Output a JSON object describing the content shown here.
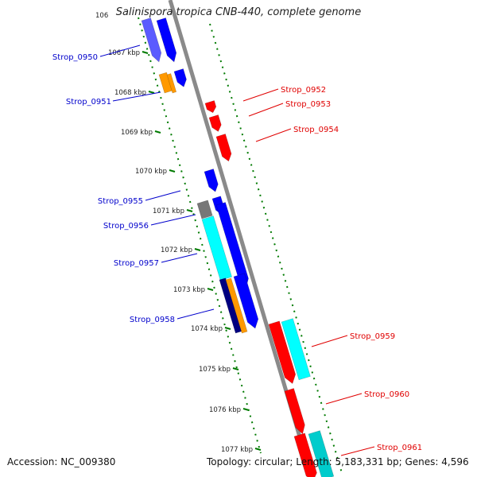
{
  "header": {
    "title": "Salinispora tropica CNB-440, complete genome",
    "top_cut_label": "106"
  },
  "footer": {
    "accession": "Accession: NC_009380",
    "summary": "Topology: circular; Length: 5,183,331 bp; Genes: 4,596"
  },
  "colors": {
    "backbone": "#8a8a8a",
    "tick": "#007a00",
    "forward_label": "#0000cc",
    "reverse_label": "#e00000",
    "cds_forward": "#0000ff",
    "cds_reverse": "#ff0000",
    "orange": "#ff9900",
    "cyan": "#00ffff",
    "grey": "#777777",
    "navy": "#000080"
  },
  "ticks": [
    {
      "label": "1067 kbp"
    },
    {
      "label": "1068 kbp"
    },
    {
      "label": "1069 kbp"
    },
    {
      "label": "1070 kbp"
    },
    {
      "label": "1071 kbp"
    },
    {
      "label": "1072 kbp"
    },
    {
      "label": "1073 kbp"
    },
    {
      "label": "1074 kbp"
    },
    {
      "label": "1075 kbp"
    },
    {
      "label": "1076 kbp"
    },
    {
      "label": "1077 kbp"
    }
  ],
  "genes": [
    {
      "label": "Strop_0950",
      "strand": "forward"
    },
    {
      "label": "Strop_0951",
      "strand": "forward"
    },
    {
      "label": "Strop_0952",
      "strand": "reverse"
    },
    {
      "label": "Strop_0953",
      "strand": "reverse"
    },
    {
      "label": "Strop_0954",
      "strand": "reverse"
    },
    {
      "label": "Strop_0955",
      "strand": "forward"
    },
    {
      "label": "Strop_0956",
      "strand": "forward"
    },
    {
      "label": "Strop_0957",
      "strand": "forward"
    },
    {
      "label": "Strop_0958",
      "strand": "forward"
    },
    {
      "label": "Strop_0959",
      "strand": "reverse"
    },
    {
      "label": "Strop_0960",
      "strand": "reverse"
    },
    {
      "label": "Strop_0961",
      "strand": "reverse"
    }
  ]
}
